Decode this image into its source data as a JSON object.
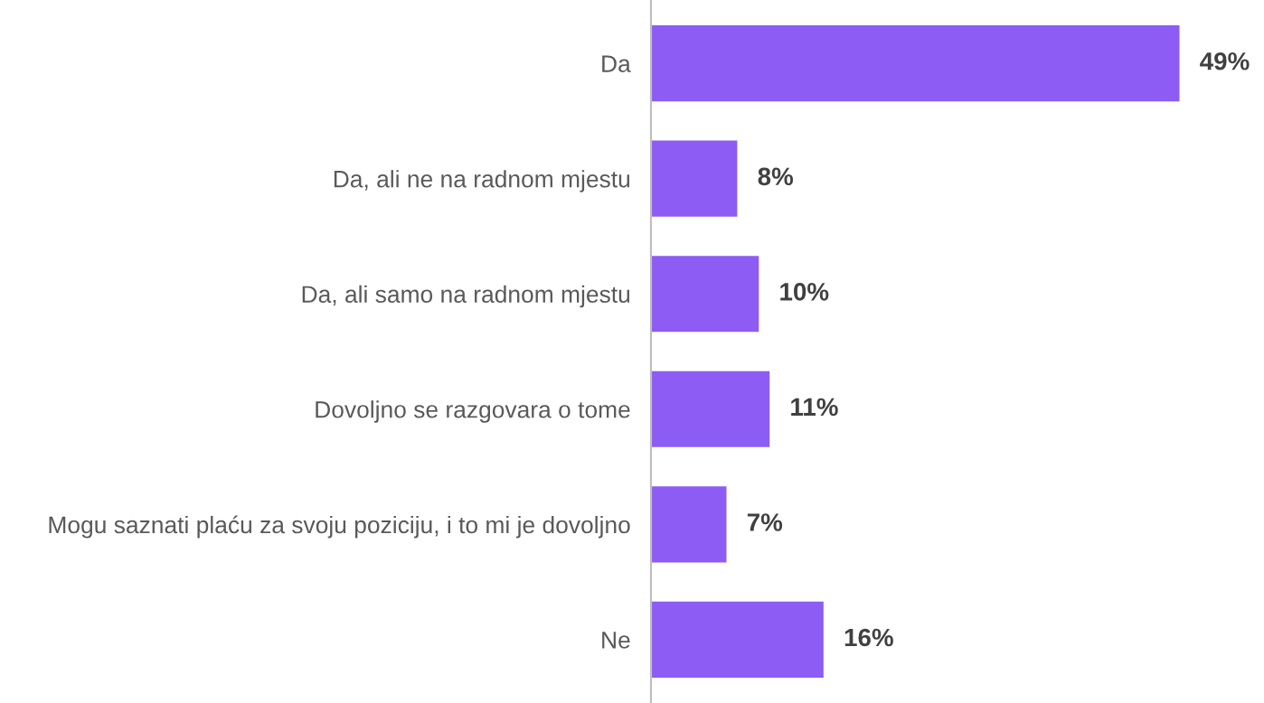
{
  "chart_data": {
    "type": "bar",
    "orientation": "horizontal",
    "categories": [
      "Da",
      "Da, ali ne na radnom mjestu",
      "Da, ali samo na radnom mjestu",
      "Dovoljno se razgovara o tome",
      "Mogu saznati plaću za svoju poziciju, i to mi je dovoljno",
      "Ne"
    ],
    "values": [
      49,
      8,
      10,
      11,
      7,
      16
    ],
    "value_labels": [
      "49%",
      "8%",
      "10%",
      "11%",
      "7%",
      "16%"
    ],
    "color": "#8c5cf5",
    "tick_labels": "y",
    "grid": false,
    "legend": false
  }
}
